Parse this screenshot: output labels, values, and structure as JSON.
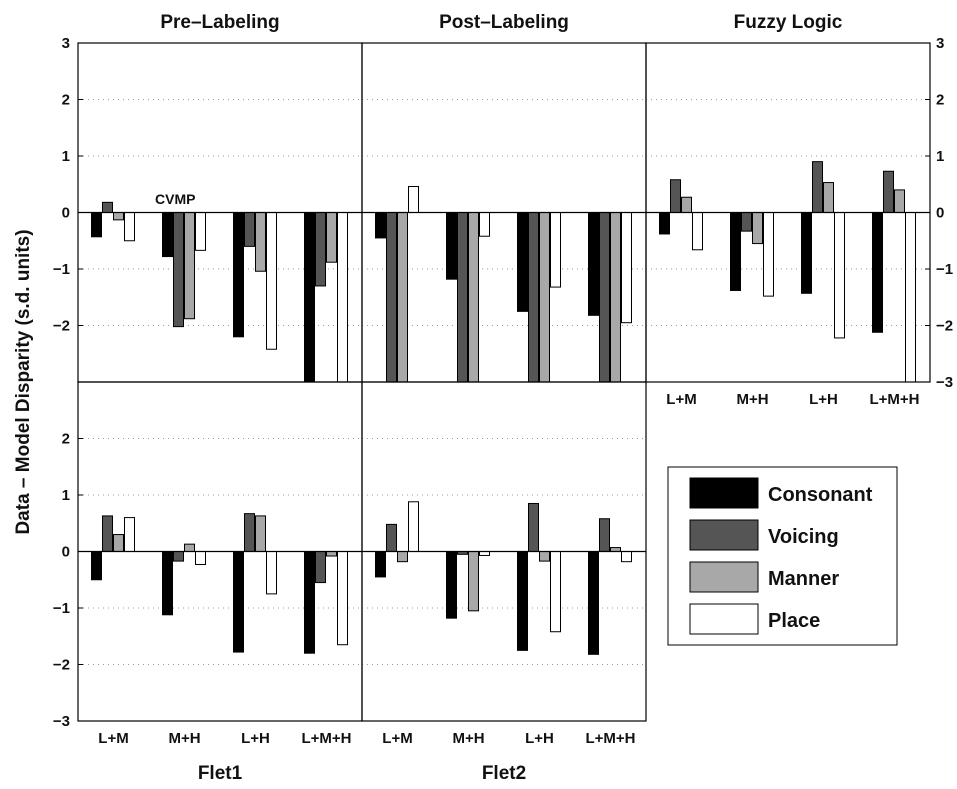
{
  "figure": {
    "ylabel": "Data  – Model Disparity (s.d. units)",
    "annotation": "CVMP"
  },
  "legend": {
    "items": [
      {
        "label": "Consonant",
        "color": "#000000"
      },
      {
        "label": "Voicing",
        "color": "#555555"
      },
      {
        "label": "Manner",
        "color": "#a8a8a8"
      },
      {
        "label": "Place",
        "color": "#ffffff"
      }
    ]
  },
  "chart_data": [
    {
      "type": "bar",
      "panel": "top-left",
      "title": "Pre–Labeling",
      "xlabel": "",
      "categories": [
        "L+M",
        "M+H",
        "L+H",
        "L+M+H"
      ],
      "show_category_labels": false,
      "ylim": [
        -3,
        3
      ],
      "yticks": [
        -2,
        -1,
        0,
        1,
        2,
        3
      ],
      "ytick_side": "left",
      "series": [
        {
          "name": "Consonant",
          "values": [
            -0.43,
            -0.78,
            -2.2,
            -3.0
          ]
        },
        {
          "name": "Voicing",
          "values": [
            0.18,
            -2.02,
            -0.6,
            -1.3
          ]
        },
        {
          "name": "Manner",
          "values": [
            -0.13,
            -1.88,
            -1.04,
            -0.88
          ]
        },
        {
          "name": "Place",
          "values": [
            -0.5,
            -0.67,
            -2.42,
            -3.0
          ]
        }
      ]
    },
    {
      "type": "bar",
      "panel": "top-middle",
      "title": "Post–Labeling",
      "xlabel": "",
      "categories": [
        "L+M",
        "M+H",
        "L+H",
        "L+M+H"
      ],
      "show_category_labels": false,
      "ylim": [
        -3,
        3
      ],
      "yticks": [],
      "ytick_side": "none",
      "series": [
        {
          "name": "Consonant",
          "values": [
            -0.45,
            -1.18,
            -1.75,
            -1.82
          ]
        },
        {
          "name": "Voicing",
          "values": [
            -3.0,
            -3.0,
            -3.0,
            -3.0
          ]
        },
        {
          "name": "Manner",
          "values": [
            -3.0,
            -3.0,
            -3.0,
            -3.0
          ]
        },
        {
          "name": "Place",
          "values": [
            0.46,
            -0.42,
            -1.32,
            -1.95
          ]
        }
      ]
    },
    {
      "type": "bar",
      "panel": "top-right",
      "title": "Fuzzy Logic",
      "xlabel": "",
      "categories": [
        "L+M",
        "M+H",
        "L+H",
        "L+M+H"
      ],
      "show_category_labels": true,
      "ylim": [
        -3,
        3
      ],
      "yticks": [
        -3,
        -2,
        -1,
        0,
        1,
        2,
        3
      ],
      "ytick_side": "right",
      "series": [
        {
          "name": "Consonant",
          "values": [
            -0.38,
            -1.38,
            -1.43,
            -2.12
          ]
        },
        {
          "name": "Voicing",
          "values": [
            0.58,
            -0.33,
            0.9,
            0.73
          ]
        },
        {
          "name": "Manner",
          "values": [
            0.27,
            -0.55,
            0.53,
            0.4
          ]
        },
        {
          "name": "Place",
          "values": [
            -0.66,
            -1.48,
            -2.22,
            -3.0
          ]
        }
      ]
    },
    {
      "type": "bar",
      "panel": "bottom-left",
      "title": "",
      "xlabel": "Flet1",
      "categories": [
        "L+M",
        "M+H",
        "L+H",
        "L+M+H"
      ],
      "show_category_labels": true,
      "ylim": [
        -3,
        3
      ],
      "yticks": [
        -3,
        -2,
        -1,
        0,
        1,
        2
      ],
      "ytick_side": "left",
      "series": [
        {
          "name": "Consonant",
          "values": [
            -0.5,
            -1.12,
            -1.78,
            -1.8
          ]
        },
        {
          "name": "Voicing",
          "values": [
            0.63,
            -0.17,
            0.67,
            -0.55
          ]
        },
        {
          "name": "Manner",
          "values": [
            0.3,
            0.13,
            0.63,
            -0.08
          ]
        },
        {
          "name": "Place",
          "values": [
            0.6,
            -0.23,
            -0.75,
            -1.65
          ]
        }
      ]
    },
    {
      "type": "bar",
      "panel": "bottom-middle",
      "title": "",
      "xlabel": "Flet2",
      "categories": [
        "L+M",
        "M+H",
        "L+H",
        "L+M+H"
      ],
      "show_category_labels": true,
      "ylim": [
        -3,
        3
      ],
      "yticks": [],
      "ytick_side": "none",
      "series": [
        {
          "name": "Consonant",
          "values": [
            -0.45,
            -1.18,
            -1.75,
            -1.82
          ]
        },
        {
          "name": "Voicing",
          "values": [
            0.48,
            -0.05,
            0.85,
            0.58
          ]
        },
        {
          "name": "Manner",
          "values": [
            -0.18,
            -1.05,
            -0.17,
            0.07
          ]
        },
        {
          "name": "Place",
          "values": [
            0.88,
            -0.07,
            -1.42,
            -0.18
          ]
        }
      ]
    }
  ]
}
